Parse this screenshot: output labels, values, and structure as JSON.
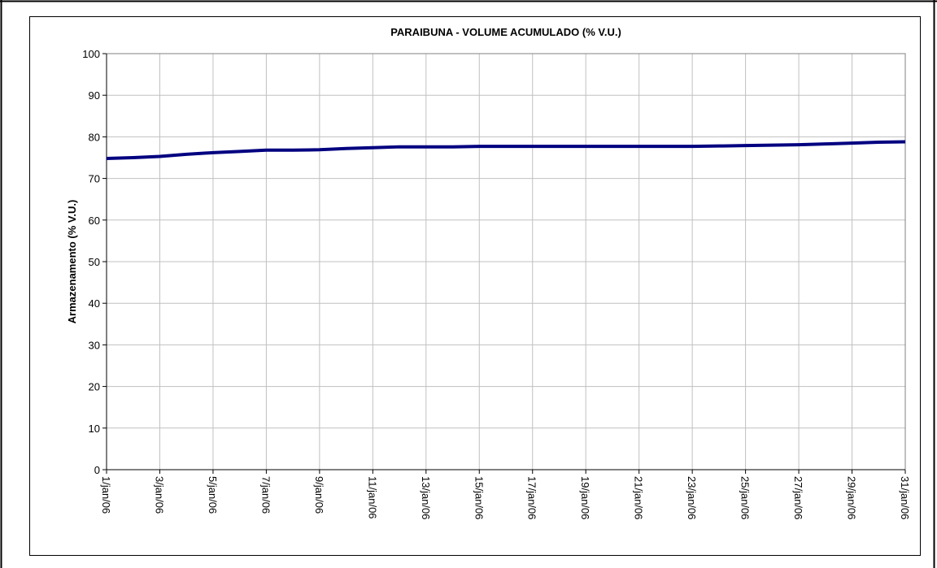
{
  "chart_data": {
    "type": "line",
    "title": "PARAIBUNA - VOLUME ACUMULADO (% V.U.)",
    "y_label": "Armazenamento (% V.U.)",
    "categories": [
      "1/jan/06",
      null,
      "3/jan/06",
      null,
      "5/jan/06",
      null,
      "7/jan/06",
      null,
      "9/jan/06",
      null,
      "11/jan/06",
      null,
      "13/jan/06",
      null,
      "15/jan/06",
      null,
      "17/jan/06",
      null,
      "19/jan/06",
      null,
      "21/jan/06",
      null,
      "23/jan/06",
      null,
      "25/jan/06",
      null,
      "27/jan/06",
      null,
      "29/jan/06",
      null,
      "31/jan/06"
    ],
    "values": [
      74.8,
      75.0,
      75.3,
      75.8,
      76.2,
      76.5,
      76.8,
      76.8,
      76.9,
      77.2,
      77.4,
      77.6,
      77.6,
      77.6,
      77.7,
      77.7,
      77.7,
      77.7,
      77.7,
      77.7,
      77.7,
      77.7,
      77.7,
      77.8,
      77.9,
      78.0,
      78.1,
      78.3,
      78.5,
      78.7,
      78.8
    ],
    "color": "#000080",
    "ylim": [
      0,
      100
    ],
    "yticks": [
      0,
      10,
      20,
      30,
      40,
      50,
      60,
      70,
      80,
      90,
      100
    ],
    "grid": true
  }
}
